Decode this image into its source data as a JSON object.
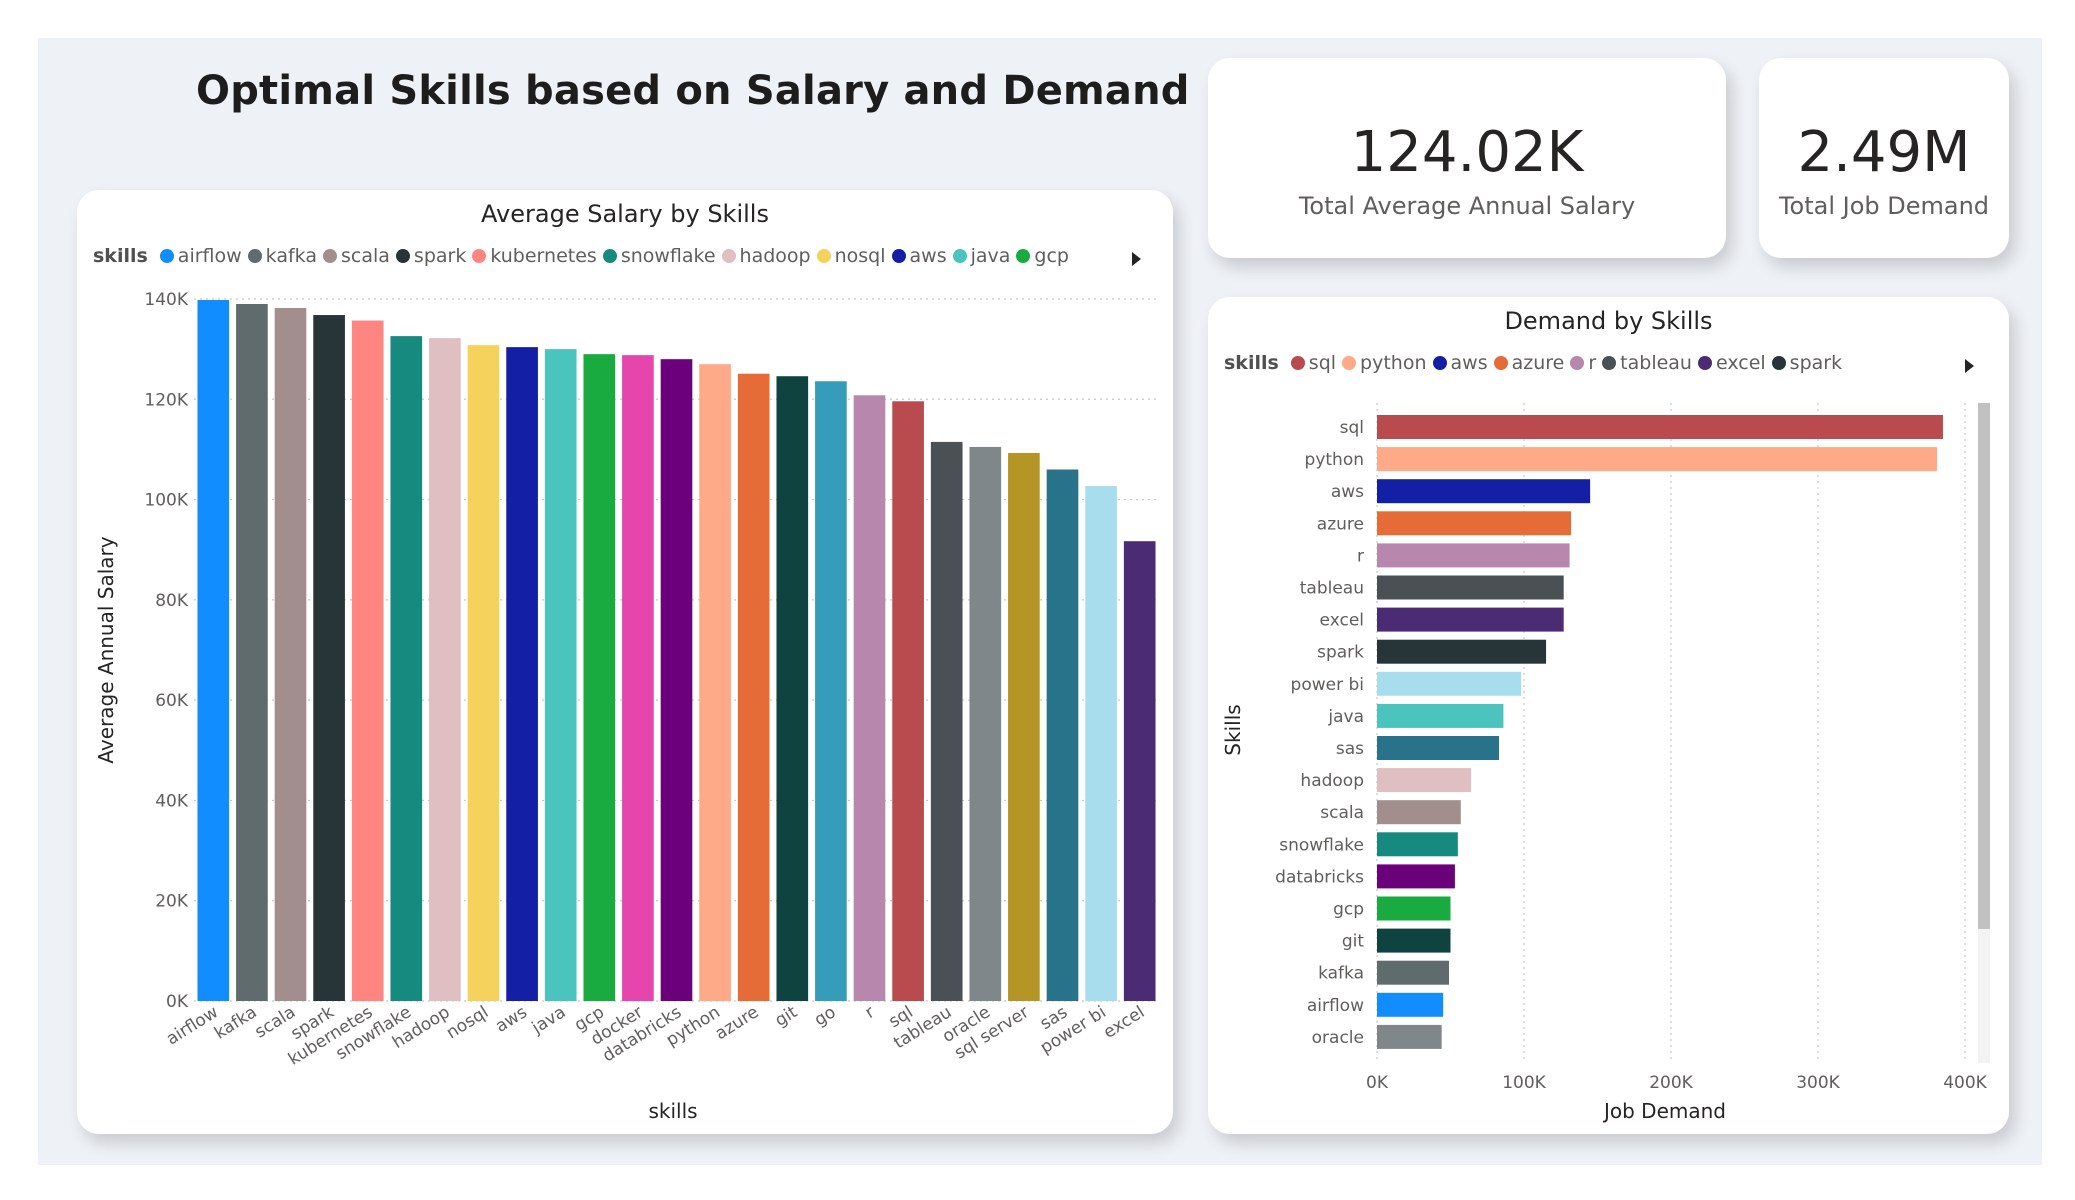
{
  "report": {
    "title": "Optimal Skills based on Salary and Demand"
  },
  "kpis": [
    {
      "value": "124.02K",
      "label": "Total Average Annual Salary"
    },
    {
      "value": "2.49M",
      "label": "Total Job Demand"
    }
  ],
  "salary_chart": {
    "title": "Average Salary by Skills",
    "legend_title": "skills",
    "legend_items": [
      {
        "name": "airflow",
        "color": "#118DFF"
      },
      {
        "name": "kafka",
        "color": "#5F6B6D"
      },
      {
        "name": "scala",
        "color": "#A38E8E"
      },
      {
        "name": "spark",
        "color": "#283538"
      },
      {
        "name": "kubernetes",
        "color": "#FE8580"
      },
      {
        "name": "snowflake",
        "color": "#178A7F"
      },
      {
        "name": "hadoop",
        "color": "#E0BFC2"
      },
      {
        "name": "nosql",
        "color": "#F4D25B"
      },
      {
        "name": "aws",
        "color": "#1320A5"
      },
      {
        "name": "java",
        "color": "#4AC4BD"
      },
      {
        "name": "gcp",
        "color": "#1AAB40"
      }
    ]
  },
  "demand_chart": {
    "title": "Demand by Skills",
    "legend_title": "skills",
    "legend_items": [
      {
        "name": "sql",
        "color": "#B94A4E"
      },
      {
        "name": "python",
        "color": "#FEA987"
      },
      {
        "name": "aws",
        "color": "#1320A5"
      },
      {
        "name": "azure",
        "color": "#E66C37"
      },
      {
        "name": "r",
        "color": "#B887AD"
      },
      {
        "name": "tableau",
        "color": "#4A5053"
      },
      {
        "name": "excel",
        "color": "#4B2C74"
      },
      {
        "name": "spark",
        "color": "#283538"
      }
    ]
  },
  "chart_data": [
    {
      "type": "bar",
      "title": "Average Salary by Skills",
      "xlabel": "skills",
      "ylabel": "Average Annual Salary",
      "ylim": [
        0,
        140000
      ],
      "yticks": [
        "0K",
        "20K",
        "40K",
        "60K",
        "80K",
        "100K",
        "120K",
        "140K"
      ],
      "ytick_values": [
        0,
        20000,
        40000,
        60000,
        80000,
        100000,
        120000,
        140000
      ],
      "grid": true,
      "legend": "top-left",
      "categories": [
        "airflow",
        "kafka",
        "scala",
        "spark",
        "kubernetes",
        "snowflake",
        "hadoop",
        "nosql",
        "aws",
        "java",
        "gcp",
        "docker",
        "databricks",
        "python",
        "azure",
        "git",
        "go",
        "r",
        "sql",
        "tableau",
        "oracle",
        "sql server",
        "sas",
        "power bi",
        "excel"
      ],
      "values": [
        139800,
        139000,
        138200,
        136800,
        135700,
        132600,
        132200,
        130800,
        130400,
        130000,
        129000,
        128800,
        128000,
        127000,
        125100,
        124600,
        123600,
        120800,
        119600,
        111500,
        110500,
        109300,
        106000,
        102700,
        91700
      ],
      "colors": [
        "#118DFF",
        "#5F6B6D",
        "#A38E8E",
        "#283538",
        "#FE8580",
        "#178A7F",
        "#E0BFC2",
        "#F4D25B",
        "#1320A5",
        "#4AC4BD",
        "#1AAB40",
        "#E645AB",
        "#6B007B",
        "#FEA987",
        "#E66C37",
        "#0F433F",
        "#359CBA",
        "#B887AD",
        "#B94A4E",
        "#4A5053",
        "#7F878A",
        "#B59525",
        "#287389",
        "#A8DDED",
        "#4B2C74"
      ]
    },
    {
      "type": "bar",
      "orientation": "horizontal",
      "title": "Demand by Skills",
      "xlabel": "Job Demand",
      "ylabel": "Skills",
      "xlim": [
        0,
        400000
      ],
      "xticks": [
        "0K",
        "100K",
        "200K",
        "300K",
        "400K"
      ],
      "xtick_values": [
        0,
        100000,
        200000,
        300000,
        400000
      ],
      "grid": true,
      "legend": "top-left",
      "categories": [
        "sql",
        "python",
        "aws",
        "azure",
        "r",
        "tableau",
        "excel",
        "spark",
        "power bi",
        "java",
        "sas",
        "hadoop",
        "scala",
        "snowflake",
        "databricks",
        "gcp",
        "git",
        "kafka",
        "airflow",
        "oracle"
      ],
      "values": [
        385000,
        381000,
        145000,
        132000,
        131000,
        127000,
        127000,
        115000,
        98000,
        86000,
        83000,
        64000,
        57000,
        55000,
        53000,
        50000,
        50000,
        49000,
        45000,
        44000
      ],
      "colors": [
        "#B94A4E",
        "#FEA987",
        "#1320A5",
        "#E66C37",
        "#B887AD",
        "#4A5053",
        "#4B2C74",
        "#283538",
        "#A8DDED",
        "#4AC4BD",
        "#287389",
        "#E0BFC2",
        "#A38E8E",
        "#178A7F",
        "#6B007B",
        "#1AAB40",
        "#0F433F",
        "#5F6B6D",
        "#118DFF",
        "#7F878A"
      ]
    }
  ]
}
